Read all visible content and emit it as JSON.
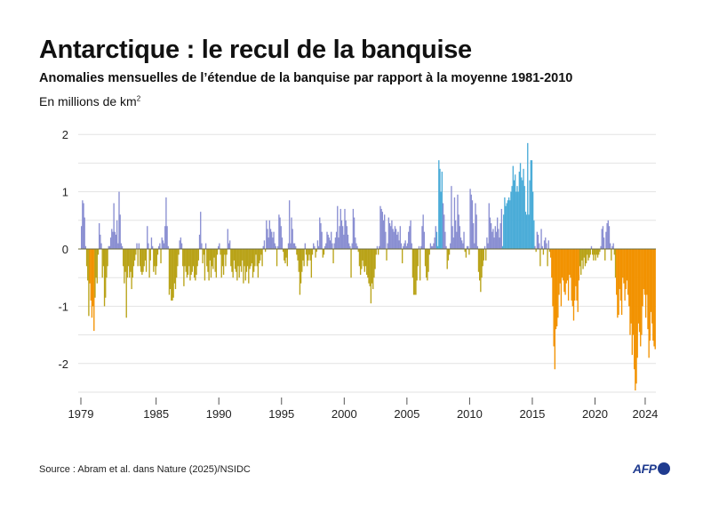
{
  "header": {
    "title": "Antarctique : le recul de la banquise",
    "subtitle": "Anomalies mensuelles de l’étendue de la banquise par rapport à la moyenne 1981-2010",
    "unit_label": "En millions de km",
    "unit_sup": "2"
  },
  "footer": {
    "source": "Source : Abram et al. dans Nature (2025)/NSIDC",
    "logo_text": "AFP"
  },
  "colors": {
    "positive_small": "#8a8fd2",
    "positive_large": "#4bacd8",
    "negative_small": "#b9a318",
    "negative_large": "#f29200",
    "zero_line": "#6b6b3a",
    "grid": "#e3e3e3"
  },
  "chart_data": {
    "type": "bar",
    "title": "Antarctique : le recul de la banquise",
    "ylabel": "En millions de km²",
    "ylim": [
      -2.5,
      2
    ],
    "yticks": [
      2,
      1,
      0,
      -1,
      -2
    ],
    "xticks": [
      1979,
      1985,
      1990,
      1995,
      2000,
      2005,
      2010,
      2015,
      2020,
      2024
    ],
    "grid": true,
    "monthly": [
      {
        "year": 1979,
        "values": [
          0.4,
          0.85,
          0.8,
          0.55,
          0.05,
          -0.3,
          -0.55,
          -1.17,
          -0.6,
          -0.9,
          -1.2,
          -1.0
        ]
      },
      {
        "year": 1980,
        "values": [
          -1.43,
          -0.85,
          -0.5,
          -0.6,
          -0.1,
          0.45,
          0.25,
          0.1,
          -0.5,
          -0.3,
          -1.0,
          -0.85
        ]
      },
      {
        "year": 1981,
        "values": [
          -0.5,
          -0.3,
          0.05,
          0.05,
          0.2,
          0.35,
          0.3,
          0.8,
          0.3,
          0.25,
          0.5,
          0.1
        ]
      },
      {
        "year": 1982,
        "values": [
          1.0,
          0.6,
          0.1,
          0.05,
          -0.3,
          -0.6,
          -0.4,
          -1.2,
          -0.5,
          -0.3,
          -0.5,
          -0.4
        ]
      },
      {
        "year": 1983,
        "values": [
          -0.7,
          -0.5,
          -0.3,
          -0.2,
          -0.1,
          0.1,
          -0.3,
          0.1,
          -0.3,
          -0.4,
          -0.45,
          -0.4
        ]
      },
      {
        "year": 1984,
        "values": [
          -0.3,
          -0.2,
          -0.4,
          0.4,
          0.1,
          -0.5,
          -0.2,
          0.2,
          0.05,
          -0.4,
          -0.3,
          -0.45
        ]
      },
      {
        "year": 1985,
        "values": [
          -0.3,
          -0.1,
          0.05,
          0.1,
          -0.25,
          0.2,
          0.15,
          0.1,
          0.4,
          0.9,
          0.4,
          0.05
        ]
      },
      {
        "year": 1986,
        "values": [
          -0.8,
          -0.7,
          -0.9,
          -0.9,
          -0.85,
          -0.6,
          -0.7,
          -0.5,
          -0.3,
          -0.1,
          0.15,
          0.2
        ]
      },
      {
        "year": 1987,
        "values": [
          0.1,
          -0.3,
          -0.65,
          -0.3,
          -0.4,
          -0.5,
          -0.45,
          -0.3,
          -0.55,
          -0.45,
          -0.4,
          -0.3
        ]
      },
      {
        "year": 1988,
        "values": [
          -0.5,
          -0.55,
          -0.45,
          -0.3,
          -0.2,
          0.25,
          0.65,
          0.1,
          -0.25,
          -0.1,
          -0.55,
          0.1
        ]
      },
      {
        "year": 1989,
        "values": [
          -0.3,
          -0.4,
          -0.55,
          -0.2,
          -0.5,
          -0.3,
          -0.35,
          -0.15,
          -0.4,
          -0.5,
          -0.1,
          0.05
        ]
      },
      {
        "year": 1990,
        "values": [
          0.1,
          -0.1,
          -0.5,
          -0.3,
          -0.45,
          -0.1,
          -0.3,
          -0.1,
          0.35,
          0.1,
          0.15,
          -0.3
        ]
      },
      {
        "year": 1991,
        "values": [
          -0.4,
          -0.5,
          -0.2,
          -0.35,
          -0.4,
          -0.55,
          -0.3,
          -0.5,
          -0.3,
          -0.4,
          -0.2,
          -0.6
        ]
      },
      {
        "year": 1992,
        "values": [
          -0.3,
          -0.55,
          -0.4,
          -0.3,
          -0.6,
          -0.35,
          -0.3,
          -0.25,
          -0.5,
          -0.4,
          -0.3,
          -0.1
        ]
      },
      {
        "year": 1993,
        "values": [
          -0.3,
          -0.5,
          -0.25,
          -0.2,
          -0.1,
          -0.3,
          0.05,
          0.15,
          -0.05,
          0.5,
          0.35,
          0.2
        ]
      },
      {
        "year": 1994,
        "values": [
          0.5,
          0.35,
          0.3,
          0.2,
          0.3,
          0.1,
          0.05,
          -0.3,
          0.05,
          0.6,
          0.55,
          0.4
        ]
      },
      {
        "year": 1995,
        "values": [
          0.2,
          -0.05,
          -0.2,
          -0.25,
          -0.15,
          -0.3,
          0.1,
          0.85,
          0.1,
          0.55,
          0.35,
          0.1
        ]
      },
      {
        "year": 1996,
        "values": [
          0.1,
          0.05,
          -0.1,
          -0.2,
          -0.4,
          -0.8,
          -0.6,
          -0.4,
          -0.2,
          -0.3,
          0.1,
          -0.1
        ]
      },
      {
        "year": 1997,
        "values": [
          -0.3,
          -0.2,
          -0.1,
          -0.2,
          -0.5,
          -0.1,
          0.1,
          0.05,
          -0.15,
          -0.05,
          0.15,
          0.05
        ]
      },
      {
        "year": 1998,
        "values": [
          0.55,
          0.45,
          0.3,
          -0.15,
          -0.1,
          0.05,
          0.1,
          0.3,
          0.25,
          0.2,
          0.15,
          0.3
        ]
      },
      {
        "year": 1999,
        "values": [
          0.1,
          -0.25,
          0.1,
          0.2,
          0.3,
          0.75,
          0.2,
          0.4,
          0.7,
          0.5,
          0.4,
          0.25
        ]
      },
      {
        "year": 2000,
        "values": [
          0.7,
          0.5,
          0.4,
          0.25,
          0.1,
          0.05,
          -0.5,
          0.1,
          0.7,
          0.55,
          0.2,
          0.1
        ]
      },
      {
        "year": 2001,
        "values": [
          0.05,
          -0.05,
          -0.3,
          -0.45,
          -0.35,
          -0.2,
          -0.3,
          -0.4,
          -0.3,
          -0.45,
          -0.5,
          -0.6
        ]
      },
      {
        "year": 2002,
        "values": [
          -0.65,
          -0.95,
          -0.6,
          -0.7,
          -0.5,
          -0.35,
          -0.1,
          0.05,
          -0.1,
          0.05,
          0.75,
          0.7
        ]
      },
      {
        "year": 2003,
        "values": [
          0.65,
          0.5,
          0.6,
          0.3,
          -0.2,
          0.1,
          0.55,
          0.45,
          0.4,
          0.5,
          0.35,
          0.3
        ]
      },
      {
        "year": 2004,
        "values": [
          0.4,
          0.35,
          0.25,
          0.3,
          0.15,
          0.4,
          0.1,
          -0.25,
          0.05,
          0.1,
          0.15,
          0.05
        ]
      },
      {
        "year": 2005,
        "values": [
          0.1,
          0.3,
          0.4,
          0.5,
          0.1,
          -0.5,
          -0.8,
          -0.8,
          -0.8,
          -0.55,
          -0.3,
          0.05
        ]
      },
      {
        "year": 2006,
        "values": [
          -0.55,
          0.05,
          0.4,
          0.6,
          0.3,
          -0.3,
          -0.5,
          -0.55,
          -0.4,
          -0.1,
          0.1,
          0.05
        ]
      },
      {
        "year": 2007,
        "values": [
          0.05,
          0.1,
          0.2,
          0.4,
          0.3,
          0.05,
          1.55,
          1.4,
          1.0,
          1.35,
          0.8,
          0.6
        ]
      },
      {
        "year": 2008,
        "values": [
          0.3,
          0.05,
          -0.35,
          -0.2,
          -0.1,
          0.1,
          1.1,
          0.4,
          0.2,
          0.9,
          0.5,
          0.3
        ]
      },
      {
        "year": 2009,
        "values": [
          0.95,
          0.6,
          0.4,
          0.2,
          0.15,
          0.1,
          0.3,
          -0.05,
          -0.15,
          0.05,
          0.05,
          -0.1
        ]
      },
      {
        "year": 2010,
        "values": [
          1.05,
          0.95,
          0.85,
          0.45,
          0.1,
          0.8,
          0.6,
          0.05,
          -0.4,
          -0.55,
          -0.75,
          -0.5
        ]
      },
      {
        "year": 2011,
        "values": [
          -0.3,
          -0.2,
          0.05,
          -0.2,
          0.2,
          0.1,
          0.8,
          0.55,
          0.45,
          0.3,
          0.35,
          0.2
        ]
      },
      {
        "year": 2012,
        "values": [
          0.4,
          0.3,
          0.55,
          0.35,
          0.2,
          0.45,
          0.7,
          0.05,
          0.6,
          0.9,
          0.75,
          0.8
        ]
      },
      {
        "year": 2013,
        "values": [
          0.85,
          0.9,
          0.85,
          1.0,
          1.1,
          1.45,
          1.2,
          1.3,
          1.0,
          1.1,
          1.0,
          1.35
        ]
      },
      {
        "year": 2014,
        "values": [
          1.5,
          1.25,
          1.2,
          1.4,
          1.1,
          0.65,
          0.6,
          1.85,
          0.6,
          1.2,
          1.55,
          1.55
        ]
      },
      {
        "year": 2015,
        "values": [
          1.0,
          0.5,
          0.05,
          -0.05,
          0.3,
          0.25,
          0.1,
          -0.3,
          0.35,
          0.05,
          -0.1,
          0.15
        ]
      },
      {
        "year": 2016,
        "values": [
          0.2,
          0.1,
          -0.3,
          0.15,
          -0.05,
          -0.15,
          -0.5,
          -1.0,
          -1.7,
          -2.1,
          -1.4,
          -1.35
        ]
      },
      {
        "year": 2017,
        "values": [
          -1.2,
          -0.8,
          -0.6,
          -1.0,
          -0.5,
          -0.55,
          -0.75,
          -0.8,
          -0.6,
          -0.55,
          -0.9,
          -0.45
        ]
      },
      {
        "year": 2018,
        "values": [
          -0.5,
          -0.9,
          -1.0,
          -1.25,
          -0.9,
          -0.65,
          -0.9,
          -1.1,
          -0.55,
          -0.3,
          -0.45,
          -0.2
        ]
      },
      {
        "year": 2019,
        "values": [
          -0.35,
          -0.15,
          -0.3,
          -0.25,
          -0.1,
          -0.2,
          -0.15,
          -0.1,
          0.05,
          -0.1,
          -0.2,
          -0.1
        ]
      },
      {
        "year": 2020,
        "values": [
          -0.2,
          -0.1,
          -0.15,
          -0.1,
          -0.05,
          0.05,
          0.35,
          0.4,
          0.2,
          -0.2,
          0.3,
          0.45
        ]
      },
      {
        "year": 2021,
        "values": [
          0.5,
          0.4,
          0.1,
          -0.2,
          0.05,
          0.1,
          -0.1,
          -0.5,
          -0.8,
          -1.2,
          -1.15,
          -0.7
        ]
      },
      {
        "year": 2022,
        "values": [
          -0.9,
          -1.15,
          -0.5,
          -0.6,
          -0.9,
          -0.7,
          -0.55,
          -0.8,
          -1.0,
          -1.5,
          -1.3,
          -1.85
        ]
      },
      {
        "year": 2023,
        "values": [
          -1.5,
          -2.1,
          -2.47,
          -2.35,
          -1.9,
          -1.3,
          -1.45,
          -1.7,
          -1.5,
          -1.0,
          -0.7,
          -0.8
        ]
      },
      {
        "year": 2024,
        "values": [
          -1.2,
          -0.8,
          -1.4,
          -1.9,
          -1.6,
          -1.1,
          -1.3,
          -1.6,
          -1.7,
          -1.75
        ]
      }
    ]
  }
}
